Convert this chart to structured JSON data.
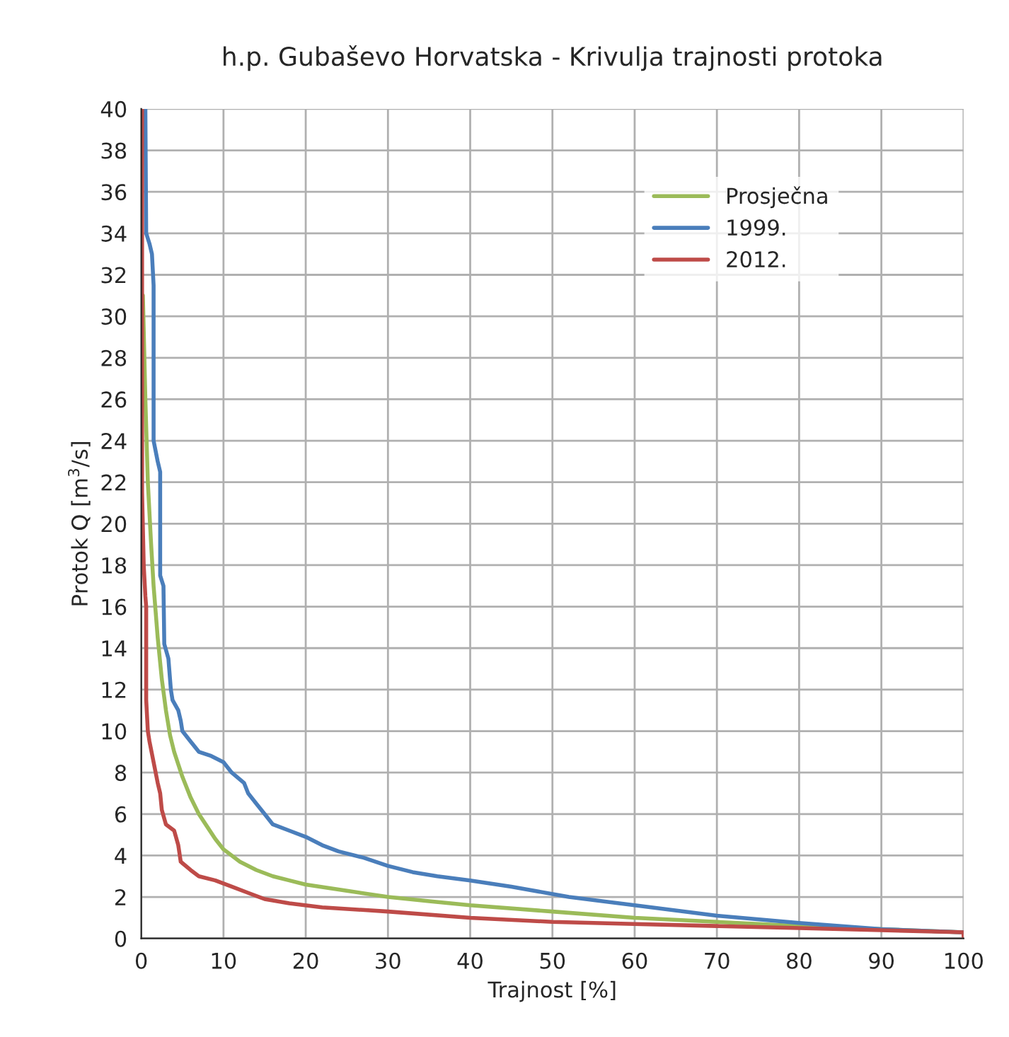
{
  "chart_data": {
    "type": "line",
    "title": "h.p. Gubaševo Horvatska - Krivulja trajnosti protoka",
    "xlabel": "Trajnost [%]",
    "ylabel": "Protok Q [m$^{3}$/s]",
    "xlim": [
      0,
      100
    ],
    "xticks": [
      0,
      10,
      20,
      30,
      40,
      50,
      60,
      70,
      80,
      90,
      100
    ],
    "ylim": [
      0,
      40
    ],
    "yticks": [
      0,
      2,
      4,
      6,
      8,
      10,
      12,
      14,
      16,
      18,
      20,
      22,
      24,
      26,
      28,
      30,
      32,
      34,
      36,
      38,
      40
    ],
    "grid": true,
    "legend": "top right",
    "marker": "none",
    "line_style": "solid",
    "series": [
      {
        "name": "Prosječna",
        "color": "#9bbb59",
        "x": [
          0.2,
          0.5,
          0.8,
          1.2,
          1.5,
          2,
          2.5,
          3,
          3.5,
          4,
          5,
          6,
          7,
          8,
          9,
          10,
          12,
          14,
          16,
          18,
          20,
          25,
          30,
          35,
          40,
          50,
          60,
          70,
          80,
          90,
          100
        ],
        "values": [
          31,
          26,
          22,
          19,
          17,
          14.5,
          12.5,
          11,
          9.8,
          9,
          7.8,
          6.8,
          6,
          5.4,
          4.8,
          4.3,
          3.7,
          3.3,
          3.0,
          2.8,
          2.6,
          2.3,
          2.0,
          1.8,
          1.6,
          1.3,
          1.0,
          0.8,
          0.6,
          0.45,
          0.3
        ]
      },
      {
        "name": "1999.",
        "color": "#4a7ebb",
        "x": [
          0.5,
          0.6,
          1.0,
          1.3,
          1.5,
          1.5,
          2.0,
          2.3,
          2.3,
          2.7,
          2.8,
          3.3,
          3.6,
          3.8,
          4.5,
          4.8,
          5.0,
          6,
          7,
          8.5,
          10,
          11,
          12.5,
          13,
          14,
          15,
          16,
          18,
          20,
          22,
          24,
          27,
          30,
          33,
          36,
          40,
          45,
          52,
          60,
          70,
          80,
          90,
          100
        ],
        "values": [
          40,
          34,
          33.5,
          33,
          31.5,
          24,
          23,
          22.5,
          17.5,
          17,
          14.2,
          13.5,
          12,
          11.5,
          11,
          10.5,
          10,
          9.5,
          9,
          8.8,
          8.5,
          8,
          7.5,
          7,
          6.5,
          6,
          5.5,
          5.2,
          4.9,
          4.5,
          4.2,
          3.9,
          3.5,
          3.2,
          3.0,
          2.8,
          2.5,
          2.0,
          1.6,
          1.1,
          0.75,
          0.45,
          0.3
        ]
      },
      {
        "name": "2012.",
        "color": "#be4b48",
        "x": [
          0.1,
          0.1,
          0.3,
          0.5,
          0.6,
          0.6,
          0.8,
          1,
          1.5,
          2,
          2.3,
          2.5,
          3,
          4,
          4.5,
          4.8,
          6,
          7,
          9,
          11,
          13,
          15,
          18,
          22,
          30,
          40,
          50,
          60,
          70,
          80,
          90,
          100,
          100
        ],
        "values": [
          40,
          21.5,
          18,
          16.5,
          16,
          11.5,
          10,
          9.5,
          8.5,
          7.5,
          7,
          6.2,
          5.5,
          5.2,
          4.5,
          3.7,
          3.3,
          3.0,
          2.8,
          2.5,
          2.2,
          1.9,
          1.7,
          1.5,
          1.3,
          1.0,
          0.8,
          0.7,
          0.6,
          0.5,
          0.4,
          0.3,
          0.1
        ]
      }
    ]
  }
}
